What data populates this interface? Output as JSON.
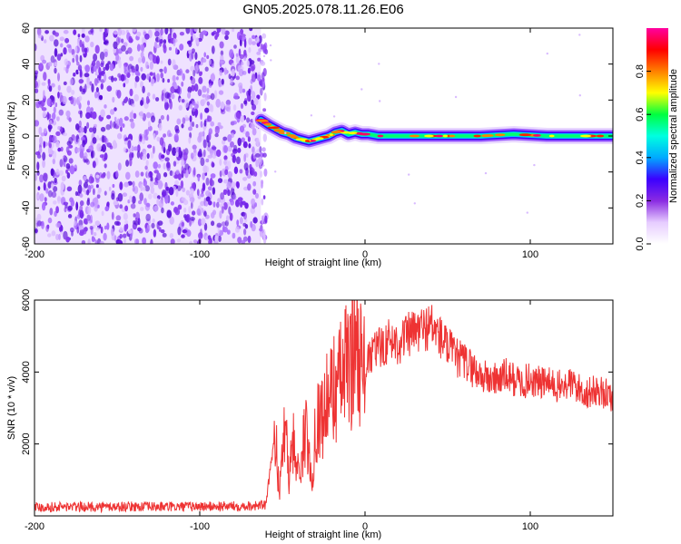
{
  "title": "GN05.2025.078.11.26.E06",
  "chart_data": [
    {
      "type": "heatmap",
      "xlabel": "Height of straight line (km)",
      "ylabel": "Frequency (Hz)",
      "xlim": [
        -200,
        150
      ],
      "ylim": [
        -60,
        60
      ],
      "xticks": [
        -200,
        -100,
        0,
        100
      ],
      "yticks": [
        -60,
        -40,
        -20,
        0,
        20,
        40,
        60
      ],
      "grid": false,
      "colorbar": {
        "label": "Normalized spectral amplitude",
        "range": [
          0,
          1
        ],
        "ticks": [
          "0.0",
          "0.2",
          "0.4",
          "0.6",
          "0.8"
        ],
        "colors": [
          "#ffffff",
          "#e6ccff",
          "#8a2be2",
          "#3b00ff",
          "#00aaff",
          "#00ffe0",
          "#00ff40",
          "#ffff00",
          "#ff8000",
          "#ff0000",
          "#ff00a0"
        ]
      },
      "noise_region_x": [
        -200,
        -63
      ],
      "ridge": {
        "x": [
          -63,
          -58,
          -54,
          -50,
          -46,
          -42,
          -38,
          -34,
          -30,
          -26,
          -22,
          -18,
          -14,
          -10,
          -6,
          -2,
          2,
          8,
          15,
          30,
          50,
          70,
          90,
          110,
          130,
          150
        ],
        "freq": [
          9,
          6,
          4,
          2,
          1,
          -1,
          -2,
          -3,
          -2,
          -1,
          0,
          2,
          3,
          1,
          2,
          1,
          1,
          0,
          0,
          0,
          0,
          0,
          1,
          0,
          0,
          0
        ]
      }
    },
    {
      "type": "line",
      "xlabel": "Height of straight line (km)",
      "ylabel": "SNR (10 * v/v)",
      "xlim": [
        -200,
        150
      ],
      "ylim": [
        0,
        6000
      ],
      "xticks": [
        -200,
        -100,
        0,
        100
      ],
      "yticks": [
        2000,
        4000,
        6000
      ],
      "grid": false,
      "series": [
        {
          "color": "#ee3333",
          "x": [
            -200,
            -180,
            -160,
            -140,
            -120,
            -100,
            -80,
            -60,
            -54,
            -52,
            -48,
            -46,
            -44,
            -40,
            -36,
            -32,
            -30,
            -26,
            -20,
            -16,
            -12,
            -8,
            -5,
            -2,
            0,
            5,
            10,
            15,
            20,
            25,
            30,
            35,
            40,
            45,
            50,
            55,
            60,
            65,
            70,
            75,
            80,
            85,
            90,
            95,
            100,
            105,
            110,
            115,
            120,
            125,
            130,
            135,
            140,
            145,
            150
          ],
          "y": [
            250,
            250,
            250,
            260,
            250,
            260,
            270,
            300,
            2500,
            500,
            3000,
            900,
            2200,
            1100,
            2400,
            900,
            2600,
            2800,
            3500,
            3700,
            4100,
            4300,
            5200,
            4000,
            4000,
            4600,
            4700,
            4900,
            4800,
            5000,
            5100,
            5200,
            5300,
            5000,
            4700,
            4400,
            4300,
            4100,
            3900,
            3800,
            3800,
            3900,
            3800,
            3700,
            3800,
            3700,
            3700,
            3600,
            3600,
            3700,
            3500,
            3400,
            3500,
            3400,
            3300
          ]
        }
      ]
    }
  ]
}
